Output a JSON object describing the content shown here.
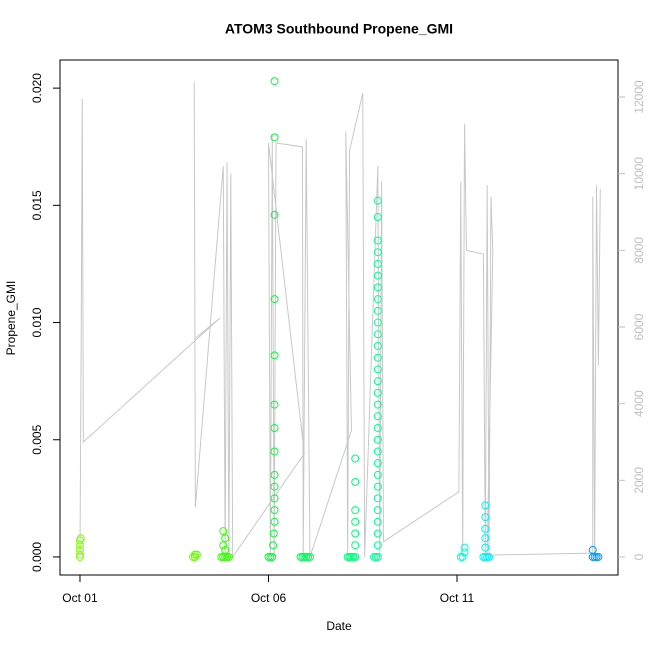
{
  "chart_data": {
    "type": "scatter",
    "title": "ATOM3 Southbound Propene_GMI",
    "xlabel": "Date",
    "ylabel": "Propene_GMI",
    "xlim": [
      -0.53,
      14.27
    ],
    "xticks": [
      {
        "value": 0,
        "label": "Oct 01"
      },
      {
        "value": 5,
        "label": "Oct 06"
      },
      {
        "value": 10,
        "label": "Oct 11"
      }
    ],
    "ylim": [
      -0.00077,
      0.0212
    ],
    "yticks": [
      {
        "value": 0,
        "label": "0.000"
      },
      0.005,
      {
        "value": 0.01,
        "label": "0.010"
      },
      0.015,
      {
        "value": 0.02,
        "label": "0.020"
      }
    ],
    "y2lim": [
      -470,
      12965
    ],
    "y2ticks": [
      0,
      2000,
      4000,
      6000,
      8000,
      10000,
      12000
    ],
    "y2color": "#bebebe",
    "series": [
      {
        "type": "line",
        "axis": "y2",
        "color": "#c8c8c8",
        "x": [
          0,
          0.03,
          0.06,
          0.09,
          3.71,
          3.05,
          3.03,
          3.06,
          3.8,
          3.85,
          3.9,
          3.95,
          4.0,
          4.05,
          5.95,
          5.0,
          5.05,
          5.1,
          5.15,
          5.2,
          5.9,
          5.92,
          6.0,
          6.1,
          7.2,
          7.05,
          7.1,
          7.15,
          7.5,
          7.55,
          7.9,
          7.95,
          8.0,
          8.05,
          10.05,
          10.1,
          10.15,
          10.2,
          10.25,
          10.7,
          10.75,
          10.8,
          10.85,
          10.9,
          10.95,
          10.8,
          13.6,
          13.6,
          13.65,
          13.7,
          13.75,
          13.8
        ],
        "values": [
          0,
          5350,
          11950,
          3000,
          6230,
          5700,
          12400,
          1300,
          10200,
          0,
          10300,
          0,
          10000,
          0,
          2700,
          10800,
          0,
          11000,
          0,
          10800,
          10700,
          0,
          10900,
          0,
          3300,
          11100,
          0,
          10600,
          12100,
          0,
          10200,
          0,
          9800,
          400,
          1700,
          9800,
          0,
          11300,
          8000,
          7900,
          0,
          9700,
          0,
          9400,
          8000,
          50,
          100,
          9400,
          0,
          9700,
          5000,
          9600
        ]
      },
      {
        "color": "#80ff00",
        "x": [
          0,
          0,
          0,
          0,
          0,
          0.02
        ],
        "values": [
          0,
          0.0001,
          0.0003,
          0.0005,
          0.0007,
          0.0008
        ]
      },
      {
        "color": "#66ff00",
        "x": [
          3.0,
          3.05,
          3.1,
          3.05
        ],
        "values": [
          0,
          0,
          0.0001,
          0.0001
        ]
      },
      {
        "color": "#33ff00",
        "x": [
          3.75,
          3.8,
          3.85,
          3.9,
          3.95,
          3.85,
          3.8,
          3.85,
          3.8
        ],
        "values": [
          0,
          0,
          0,
          0,
          0,
          0.0003,
          0.0005,
          0.0008,
          0.0011
        ]
      },
      {
        "color": "#00ff33",
        "x": [
          5.0,
          5.05,
          5.1,
          5.12,
          5.14,
          5.16,
          5.16,
          5.16,
          5.16,
          5.16,
          5.16,
          5.16,
          5.16,
          5.16,
          5.16,
          5.16,
          5.16,
          5.16
        ],
        "values": [
          0,
          0,
          0,
          0.0005,
          0.001,
          0.0015,
          0.002,
          0.0025,
          0.003,
          0.0035,
          0.0045,
          0.0055,
          0.0065,
          0.0086,
          0.011,
          0.0146,
          0.0179,
          0.0203
        ]
      },
      {
        "color": "#00ff55",
        "x": [
          5.85,
          5.9,
          5.95,
          6.0,
          6.05,
          6.1
        ],
        "values": [
          0,
          0,
          0,
          0,
          0,
          0
        ]
      },
      {
        "color": "#00ff77",
        "x": [
          7.1,
          7.15,
          7.2,
          7.25,
          7.3,
          7.3,
          7.3,
          7.3,
          7.3,
          7.3,
          7.3
        ],
        "values": [
          0,
          0,
          0,
          0,
          0,
          0.0005,
          0.001,
          0.0015,
          0.002,
          0.0032,
          0.0042
        ]
      },
      {
        "color": "#00ff99",
        "x": [
          7.8,
          7.85,
          7.9,
          7.9,
          7.9,
          7.9,
          7.9,
          7.9,
          7.9,
          7.9,
          7.9,
          7.9,
          7.9,
          7.9,
          7.9,
          7.9,
          7.9,
          7.9,
          7.9,
          7.9,
          7.9,
          7.9,
          7.9,
          7.9,
          7.9,
          7.9,
          7.9,
          7.9,
          7.9,
          7.9,
          7.9,
          7.9
        ],
        "values": [
          0,
          0,
          0,
          0.0005,
          0.001,
          0.0015,
          0.002,
          0.0025,
          0.003,
          0.0035,
          0.004,
          0.0045,
          0.005,
          0.0055,
          0.006,
          0.0065,
          0.007,
          0.0075,
          0.008,
          0.0085,
          0.009,
          0.0095,
          0.01,
          0.0105,
          0.011,
          0.0115,
          0.012,
          0.0125,
          0.013,
          0.0135,
          0.0145,
          0.0152
        ]
      },
      {
        "color": "#00ffdd",
        "x": [
          10.1,
          10.15,
          10.2,
          10.2
        ],
        "values": [
          0,
          0,
          0.0002,
          0.0004
        ]
      },
      {
        "color": "#00eeff",
        "x": [
          10.7,
          10.75,
          10.8,
          10.85,
          10.75,
          10.75,
          10.75,
          10.75,
          10.75
        ],
        "values": [
          0,
          0,
          0,
          0,
          0.0004,
          0.0008,
          0.0012,
          0.0017,
          0.0022
        ]
      },
      {
        "color": "#0099ff",
        "x": [
          13.6,
          13.65,
          13.7,
          13.75,
          13.6
        ],
        "values": [
          0,
          0,
          0,
          0,
          0.0003
        ]
      }
    ]
  }
}
